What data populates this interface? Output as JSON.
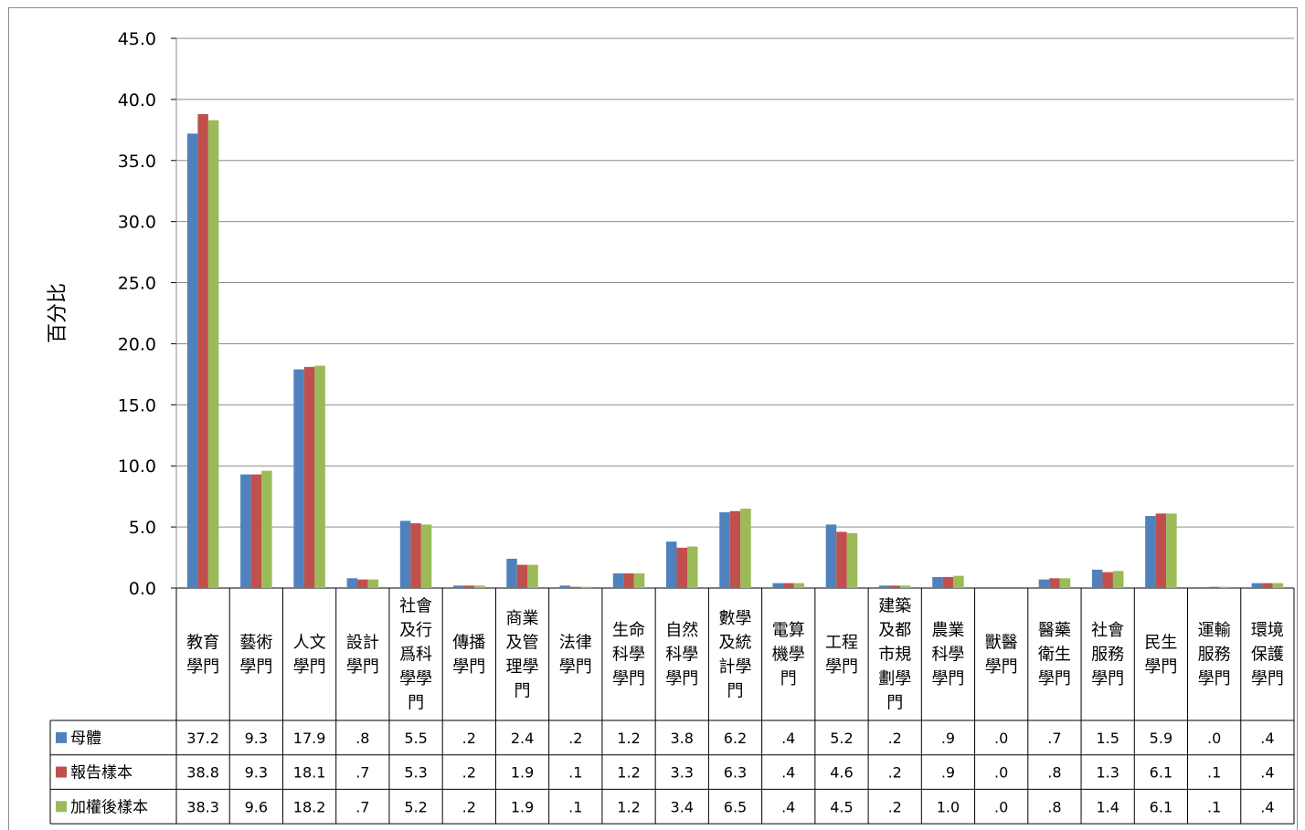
{
  "chart_data": {
    "type": "bar",
    "ylabel": "百分比",
    "ylim": [
      0,
      45
    ],
    "yticks": [
      "0.0",
      "5.0",
      "10.0",
      "15.0",
      "20.0",
      "25.0",
      "30.0",
      "35.0",
      "40.0",
      "45.0"
    ],
    "grid": true,
    "legend": "data-table-left",
    "categories": [
      [
        "教育",
        "學門"
      ],
      [
        "藝術",
        "學門"
      ],
      [
        "人文",
        "學門"
      ],
      [
        "設計",
        "學門"
      ],
      [
        "社會",
        "及行",
        "爲科",
        "學學",
        "門"
      ],
      [
        "傳播",
        "學門"
      ],
      [
        "商業",
        "及管",
        "理學",
        "門"
      ],
      [
        "法律",
        "學門"
      ],
      [
        "生命",
        "科學",
        "學門"
      ],
      [
        "自然",
        "科學",
        "學門"
      ],
      [
        "數學",
        "及統",
        "計學",
        "門"
      ],
      [
        "電算",
        "機學",
        "門"
      ],
      [
        "工程",
        "學門"
      ],
      [
        "建築",
        "及都",
        "市規",
        "劃學",
        "門"
      ],
      [
        "農業",
        "科學",
        "學門"
      ],
      [
        "獸醫",
        "學門"
      ],
      [
        "醫藥",
        "衛生",
        "學門"
      ],
      [
        "社會",
        "服務",
        "學門"
      ],
      [
        "民生",
        "學門"
      ],
      [
        "運輸",
        "服務",
        "學門"
      ],
      [
        "環境",
        "保護",
        "學門"
      ]
    ],
    "series": [
      {
        "name": "母體",
        "color": "#4f81bd",
        "values": [
          37.2,
          9.3,
          17.9,
          0.8,
          5.5,
          0.2,
          2.4,
          0.2,
          1.2,
          3.8,
          6.2,
          0.4,
          5.2,
          0.2,
          0.9,
          0.0,
          0.7,
          1.5,
          5.9,
          0.0,
          0.4
        ],
        "labels": [
          "37.2",
          "9.3",
          "17.9",
          ".8",
          "5.5",
          ".2",
          "2.4",
          ".2",
          "1.2",
          "3.8",
          "6.2",
          ".4",
          "5.2",
          ".2",
          ".9",
          ".0",
          ".7",
          "1.5",
          "5.9",
          ".0",
          ".4"
        ]
      },
      {
        "name": "報告樣本",
        "color": "#c0504d",
        "values": [
          38.8,
          9.3,
          18.1,
          0.7,
          5.3,
          0.2,
          1.9,
          0.1,
          1.2,
          3.3,
          6.3,
          0.4,
          4.6,
          0.2,
          0.9,
          0.0,
          0.8,
          1.3,
          6.1,
          0.1,
          0.4
        ],
        "labels": [
          "38.8",
          "9.3",
          "18.1",
          ".7",
          "5.3",
          ".2",
          "1.9",
          ".1",
          "1.2",
          "3.3",
          "6.3",
          ".4",
          "4.6",
          ".2",
          ".9",
          ".0",
          ".8",
          "1.3",
          "6.1",
          ".1",
          ".4"
        ]
      },
      {
        "name": "加權後樣本",
        "color": "#9bbb59",
        "values": [
          38.3,
          9.6,
          18.2,
          0.7,
          5.2,
          0.2,
          1.9,
          0.1,
          1.2,
          3.4,
          6.5,
          0.4,
          4.5,
          0.2,
          1.0,
          0.0,
          0.8,
          1.4,
          6.1,
          0.1,
          0.4
        ],
        "labels": [
          "38.3",
          "9.6",
          "18.2",
          ".7",
          "5.2",
          ".2",
          "1.9",
          ".1",
          "1.2",
          "3.4",
          "6.5",
          ".4",
          "4.5",
          ".2",
          "1.0",
          ".0",
          ".8",
          "1.4",
          "6.1",
          ".1",
          ".4"
        ]
      }
    ]
  }
}
